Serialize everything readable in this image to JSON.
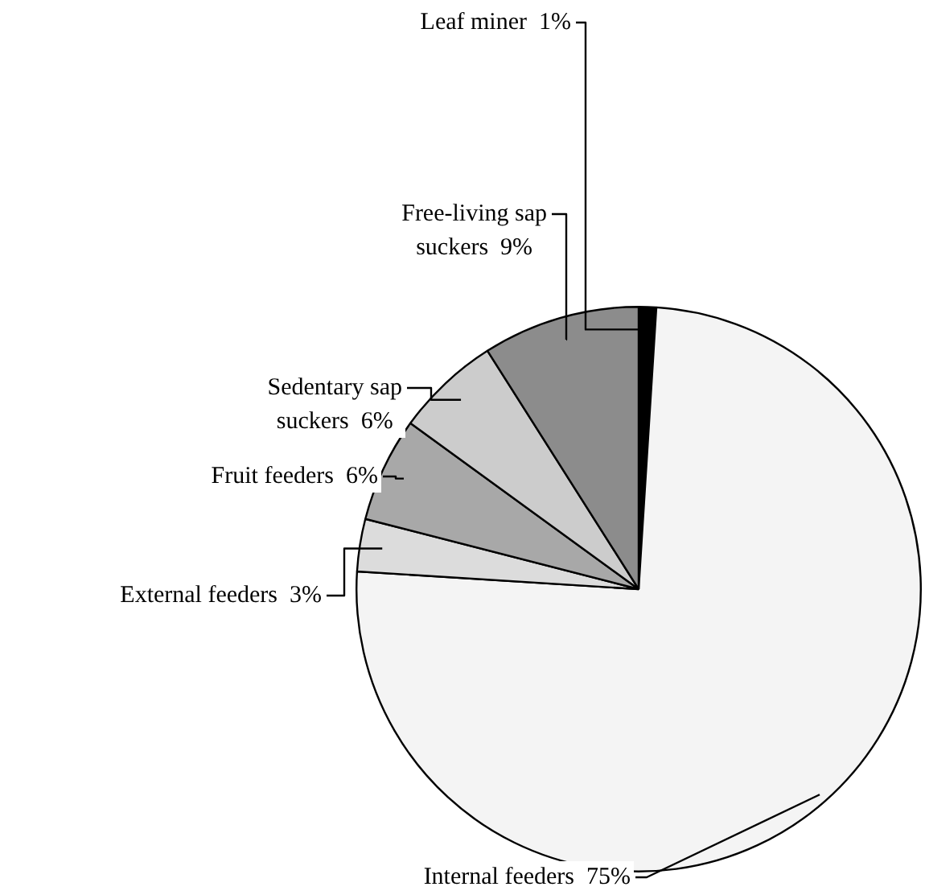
{
  "chart_data": {
    "type": "pie",
    "categories": [
      "Leaf miner",
      "Internal feeders",
      "External feeders",
      "Fruit feeders",
      "Sedentary sap suckers",
      "Free-living sap suckers"
    ],
    "values": [
      1,
      75,
      3,
      6,
      6,
      9
    ],
    "value_labels": [
      "1%",
      "75%",
      "3%",
      "6%",
      "6%",
      "9%"
    ],
    "colors": [
      "#000000",
      "#f4f4f4",
      "#dcdcdc",
      "#a8a8a8",
      "#cccccc",
      "#8c8c8c"
    ],
    "legend": false
  }
}
